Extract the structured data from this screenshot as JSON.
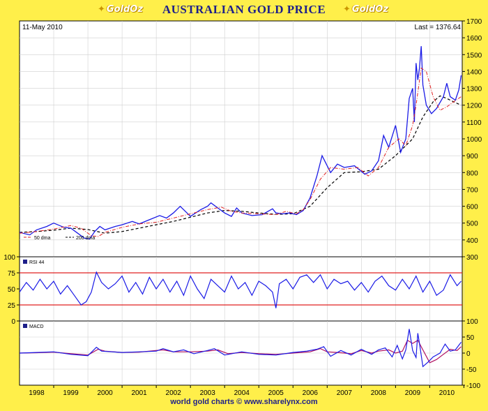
{
  "header": {
    "title": "AUSTRALIAN GOLD PRICE",
    "logo_text": "GoldOz",
    "logo_icon": "kangaroo-icon"
  },
  "footer": {
    "credit": "world gold charts © www.sharelynx.com"
  },
  "colors": {
    "frame": "#ffef4a",
    "price": "#1a1ae6",
    "dma50": "#e02020",
    "dma200": "#000000",
    "rsi_line": "#1a1ae6",
    "rsi_bands": "#e02020",
    "macd": "#1a1ae6",
    "macd_signal": "#b01060",
    "title": "#1d1f8a"
  },
  "chart_data": [
    {
      "panel": "price",
      "type": "line",
      "date_label": "11-May 2010",
      "last_label": "Last = 1376.64",
      "ylim": [
        300,
        1700
      ],
      "y_ticks": [
        300,
        400,
        500,
        600,
        700,
        800,
        900,
        1000,
        1100,
        1200,
        1300,
        1400,
        1500,
        1600,
        1700
      ],
      "x_range": [
        1997.5,
        2010.45
      ],
      "x_ticks": [
        "1998",
        "1999",
        "2000",
        "2001",
        "2002",
        "2003",
        "2004",
        "2005",
        "2006",
        "2007",
        "2008",
        "2009",
        "2010"
      ],
      "grid": true,
      "legend_position": "bottom-left",
      "series": [
        {
          "name": "50 dma",
          "style": "dash-dot",
          "x": [
            1997.5,
            1998.0,
            1998.5,
            1999.0,
            1999.3,
            1999.6,
            1999.8,
            2000.0,
            2000.5,
            2001.0,
            2001.5,
            2002.0,
            2002.5,
            2003.0,
            2003.4,
            2003.7,
            2004.0,
            2004.5,
            2005.0,
            2005.3,
            2005.6,
            2005.8,
            2006.0,
            2006.3,
            2006.6,
            2007.0,
            2007.4,
            2007.7,
            2008.0,
            2008.3,
            2008.6,
            2008.8,
            2009.0,
            2009.1,
            2009.25,
            2009.4,
            2009.6,
            2009.8,
            2010.0,
            2010.2,
            2010.42
          ],
          "y": [
            440,
            450,
            465,
            485,
            470,
            425,
            420,
            445,
            475,
            495,
            505,
            530,
            555,
            580,
            595,
            570,
            560,
            555,
            550,
            570,
            555,
            580,
            640,
            760,
            830,
            820,
            830,
            780,
            830,
            950,
            1000,
            960,
            1080,
            1200,
            1420,
            1400,
            1250,
            1170,
            1190,
            1220,
            1250
          ]
        },
        {
          "name": "200 dma",
          "style": "dashed",
          "x": [
            1997.5,
            1998.0,
            1998.5,
            1999.0,
            1999.5,
            2000.0,
            2000.5,
            2001.0,
            2001.5,
            2002.0,
            2002.5,
            2003.0,
            2003.5,
            2004.0,
            2004.5,
            2005.0,
            2005.5,
            2006.0,
            2006.5,
            2007.0,
            2007.5,
            2008.0,
            2008.5,
            2009.0,
            2009.3,
            2009.6,
            2009.8,
            2010.0,
            2010.2,
            2010.42
          ],
          "y": [
            445,
            450,
            458,
            470,
            462,
            440,
            450,
            470,
            490,
            510,
            535,
            560,
            575,
            570,
            560,
            552,
            555,
            600,
            710,
            800,
            805,
            820,
            900,
            1000,
            1130,
            1220,
            1255,
            1240,
            1220,
            1200
          ]
        },
        {
          "name": "price",
          "style": "solid",
          "x": [
            1997.5,
            1997.8,
            1998.0,
            1998.3,
            1998.5,
            1998.8,
            1999.0,
            1999.2,
            1999.4,
            1999.55,
            1999.7,
            1999.85,
            2000.0,
            2000.3,
            2000.5,
            2000.8,
            2001.0,
            2001.3,
            2001.6,
            2001.8,
            2002.0,
            2002.2,
            2002.5,
            2002.8,
            2003.0,
            2003.1,
            2003.3,
            2003.5,
            2003.7,
            2003.85,
            2004.0,
            2004.3,
            2004.6,
            2004.9,
            2005.0,
            2005.2,
            2005.4,
            2005.6,
            2005.8,
            2006.0,
            2006.2,
            2006.35,
            2006.45,
            2006.6,
            2006.8,
            2007.0,
            2007.3,
            2007.6,
            2007.8,
            2008.0,
            2008.15,
            2008.3,
            2008.5,
            2008.65,
            2008.8,
            2008.9,
            2009.0,
            2009.05,
            2009.1,
            2009.15,
            2009.2,
            2009.25,
            2009.3,
            2009.4,
            2009.55,
            2009.7,
            2009.9,
            2010.0,
            2010.1,
            2010.25,
            2010.35,
            2010.42
          ],
          "y": [
            445,
            430,
            460,
            480,
            500,
            475,
            470,
            440,
            410,
            405,
            450,
            480,
            460,
            480,
            490,
            510,
            495,
            520,
            545,
            530,
            560,
            600,
            540,
            580,
            600,
            620,
            590,
            560,
            540,
            590,
            560,
            545,
            550,
            585,
            560,
            555,
            560,
            550,
            575,
            650,
            780,
            900,
            860,
            800,
            850,
            830,
            840,
            790,
            810,
            870,
            1020,
            950,
            1080,
            920,
            1000,
            1240,
            1300,
            1100,
            1450,
            1350,
            1420,
            1550,
            1320,
            1200,
            1150,
            1180,
            1250,
            1330,
            1250,
            1230,
            1290,
            1377
          ]
        }
      ]
    },
    {
      "panel": "rsi",
      "type": "line",
      "title": "RSI 44",
      "ylim": [
        0,
        100
      ],
      "y_ticks": [
        0,
        25,
        50,
        75,
        100
      ],
      "bands": [
        25,
        75
      ],
      "series": [
        {
          "name": "RSI 44",
          "x": [
            1997.5,
            1997.7,
            1997.9,
            1998.1,
            1998.3,
            1998.5,
            1998.7,
            1998.9,
            1999.1,
            1999.3,
            1999.45,
            1999.6,
            1999.75,
            1999.9,
            2000.1,
            2000.3,
            2000.5,
            2000.7,
            2000.9,
            2001.1,
            2001.3,
            2001.5,
            2001.7,
            2001.9,
            2002.1,
            2002.3,
            2002.5,
            2002.7,
            2002.9,
            2003.1,
            2003.3,
            2003.5,
            2003.7,
            2003.9,
            2004.1,
            2004.3,
            2004.5,
            2004.7,
            2004.9,
            2005.0,
            2005.1,
            2005.3,
            2005.5,
            2005.7,
            2005.9,
            2006.1,
            2006.3,
            2006.5,
            2006.7,
            2006.9,
            2007.1,
            2007.3,
            2007.5,
            2007.7,
            2007.9,
            2008.1,
            2008.3,
            2008.5,
            2008.7,
            2008.9,
            2009.1,
            2009.3,
            2009.5,
            2009.7,
            2009.9,
            2010.1,
            2010.3,
            2010.42
          ],
          "y": [
            45,
            60,
            48,
            65,
            50,
            62,
            42,
            55,
            40,
            25,
            30,
            45,
            76,
            60,
            50,
            58,
            70,
            45,
            60,
            42,
            68,
            50,
            65,
            45,
            62,
            40,
            70,
            50,
            35,
            65,
            55,
            45,
            70,
            50,
            60,
            40,
            62,
            55,
            45,
            20,
            58,
            65,
            50,
            68,
            72,
            60,
            72,
            50,
            65,
            58,
            62,
            48,
            60,
            45,
            62,
            70,
            55,
            48,
            65,
            50,
            70,
            45,
            62,
            40,
            48,
            72,
            55,
            62
          ]
        }
      ]
    },
    {
      "panel": "macd",
      "type": "line",
      "title": "MACD",
      "ylim": [
        -100,
        100
      ],
      "y_ticks": [
        -100,
        -50,
        0,
        50,
        100
      ],
      "series": [
        {
          "name": "MACD",
          "x": [
            1997.5,
            1998.0,
            1998.5,
            1999.0,
            1999.5,
            1999.75,
            1999.9,
            2000.5,
            2001.0,
            2001.5,
            2001.7,
            2002.0,
            2002.3,
            2002.6,
            2003.0,
            2003.2,
            2003.5,
            2004.0,
            2004.5,
            2005.0,
            2005.5,
            2005.9,
            2006.2,
            2006.4,
            2006.6,
            2006.9,
            2007.2,
            2007.5,
            2007.8,
            2008.0,
            2008.2,
            2008.4,
            2008.55,
            2008.7,
            2008.8,
            2008.9,
            2009.0,
            2009.1,
            2009.15,
            2009.2,
            2009.3,
            2009.45,
            2009.6,
            2009.8,
            2009.95,
            2010.1,
            2010.25,
            2010.42
          ],
          "y": [
            0,
            2,
            4,
            -4,
            -8,
            18,
            6,
            2,
            4,
            6,
            14,
            4,
            10,
            -2,
            8,
            14,
            -6,
            4,
            -4,
            -6,
            2,
            6,
            12,
            20,
            -10,
            8,
            -6,
            12,
            -4,
            10,
            16,
            -12,
            24,
            -18,
            10,
            75,
            8,
            -14,
            62,
            30,
            -42,
            -28,
            -12,
            0,
            28,
            6,
            10,
            34
          ]
        },
        {
          "name": "signal",
          "x": [
            1997.5,
            1998.0,
            1998.5,
            1999.0,
            1999.5,
            1999.8,
            2000.0,
            2000.5,
            2001.0,
            2001.7,
            2002.0,
            2002.5,
            2003.0,
            2003.3,
            2003.6,
            2004.0,
            2004.5,
            2005.0,
            2005.5,
            2006.0,
            2006.3,
            2006.5,
            2006.8,
            2007.2,
            2007.5,
            2007.8,
            2008.0,
            2008.3,
            2008.5,
            2008.7,
            2008.85,
            2009.0,
            2009.15,
            2009.3,
            2009.5,
            2009.7,
            2009.9,
            2010.1,
            2010.3,
            2010.42
          ],
          "y": [
            0,
            1,
            3,
            -2,
            -6,
            12,
            6,
            2,
            3,
            10,
            4,
            4,
            6,
            10,
            -2,
            2,
            -2,
            -4,
            0,
            4,
            14,
            4,
            2,
            -2,
            8,
            0,
            6,
            10,
            0,
            6,
            40,
            30,
            40,
            10,
            -30,
            -20,
            -4,
            12,
            8,
            20
          ]
        }
      ]
    }
  ]
}
